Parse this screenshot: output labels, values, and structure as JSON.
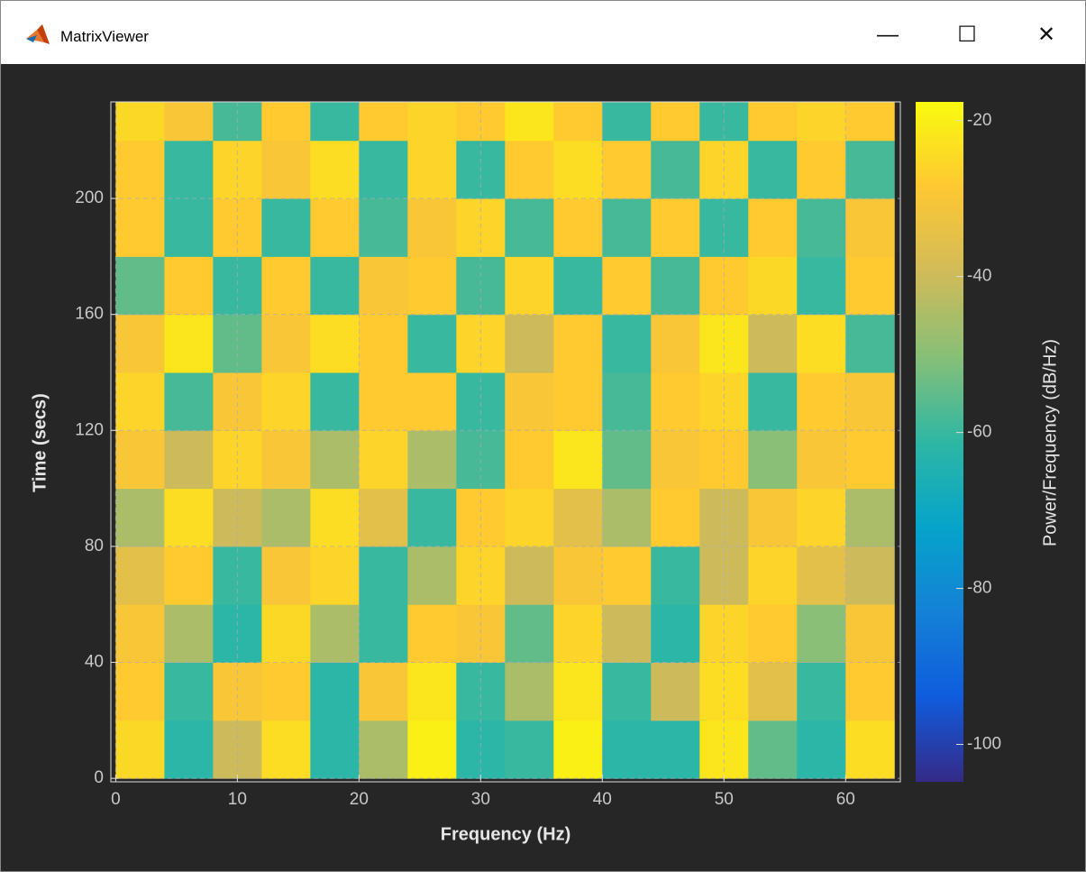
{
  "window": {
    "title": "MatrixViewer"
  },
  "chart_data": {
    "type": "heatmap",
    "xlabel": "Frequency (Hz)",
    "ylabel": "Time (secs)",
    "colorbar_label": "Power/Frequency (dB/Hz)",
    "x": [
      2,
      6,
      10,
      14,
      18,
      22,
      26,
      30,
      34,
      38,
      42,
      46,
      50,
      54,
      58,
      62
    ],
    "y": [
      10,
      30,
      50,
      70,
      90,
      110,
      130,
      150,
      170,
      190,
      210,
      230
    ],
    "z": [
      [
        -25,
        -62,
        -40,
        -24,
        -62,
        -45,
        -20,
        -62,
        -60,
        -20,
        -62,
        -62,
        -22,
        -55,
        -62,
        -24
      ],
      [
        -28,
        -60,
        -30,
        -28,
        -62,
        -30,
        -22,
        -60,
        -45,
        -22,
        -60,
        -40,
        -24,
        -35,
        -60,
        -28
      ],
      [
        -30,
        -45,
        -62,
        -25,
        -45,
        -60,
        -28,
        -30,
        -55,
        -26,
        -40,
        -62,
        -26,
        -28,
        -50,
        -30
      ],
      [
        -35,
        -28,
        -60,
        -30,
        -26,
        -60,
        -45,
        -26,
        -40,
        -30,
        -28,
        -60,
        -40,
        -26,
        -35,
        -40
      ],
      [
        -45,
        -24,
        -40,
        -45,
        -24,
        -35,
        -60,
        -28,
        -26,
        -35,
        -45,
        -28,
        -40,
        -30,
        -26,
        -45
      ],
      [
        -30,
        -40,
        -26,
        -30,
        -45,
        -26,
        -45,
        -58,
        -28,
        -22,
        -55,
        -30,
        -28,
        -50,
        -30,
        -28
      ],
      [
        -26,
        -58,
        -30,
        -26,
        -60,
        -28,
        -28,
        -60,
        -30,
        -28,
        -58,
        -28,
        -26,
        -60,
        -28,
        -30
      ],
      [
        -30,
        -22,
        -55,
        -30,
        -24,
        -28,
        -60,
        -26,
        -40,
        -28,
        -60,
        -30,
        -22,
        -40,
        -24,
        -58
      ],
      [
        -55,
        -28,
        -60,
        -28,
        -60,
        -30,
        -28,
        -58,
        -26,
        -60,
        -28,
        -58,
        -28,
        -25,
        -60,
        -28
      ],
      [
        -28,
        -60,
        -28,
        -60,
        -28,
        -58,
        -30,
        -26,
        -58,
        -28,
        -58,
        -28,
        -60,
        -28,
        -58,
        -30
      ],
      [
        -28,
        -60,
        -26,
        -30,
        -24,
        -60,
        -26,
        -60,
        -28,
        -24,
        -28,
        -58,
        -26,
        -60,
        -28,
        -58
      ],
      [
        -25,
        -30,
        -58,
        -28,
        -60,
        -28,
        -26,
        -28,
        -22,
        -28,
        -60,
        -28,
        -60,
        -28,
        -26,
        -28
      ]
    ],
    "cell_width": 4,
    "cell_height": 20,
    "xlim": [
      -0.4,
      64.5
    ],
    "xticks": [
      0,
      10,
      20,
      30,
      40,
      50,
      60
    ],
    "ylim": [
      -1.2,
      233.3
    ],
    "yticks": [
      0,
      40,
      80,
      120,
      160,
      200
    ],
    "clim": [
      -104.8,
      -17.6
    ],
    "cticks": [
      -100,
      -80,
      -60,
      -40,
      -20
    ],
    "colormap": [
      "#352a87",
      "#0f5cdd",
      "#1481d6",
      "#06a4ca",
      "#2eb7a4",
      "#87bf77",
      "#d1bb59",
      "#fec832",
      "#f9fb0e"
    ],
    "grid": true
  }
}
